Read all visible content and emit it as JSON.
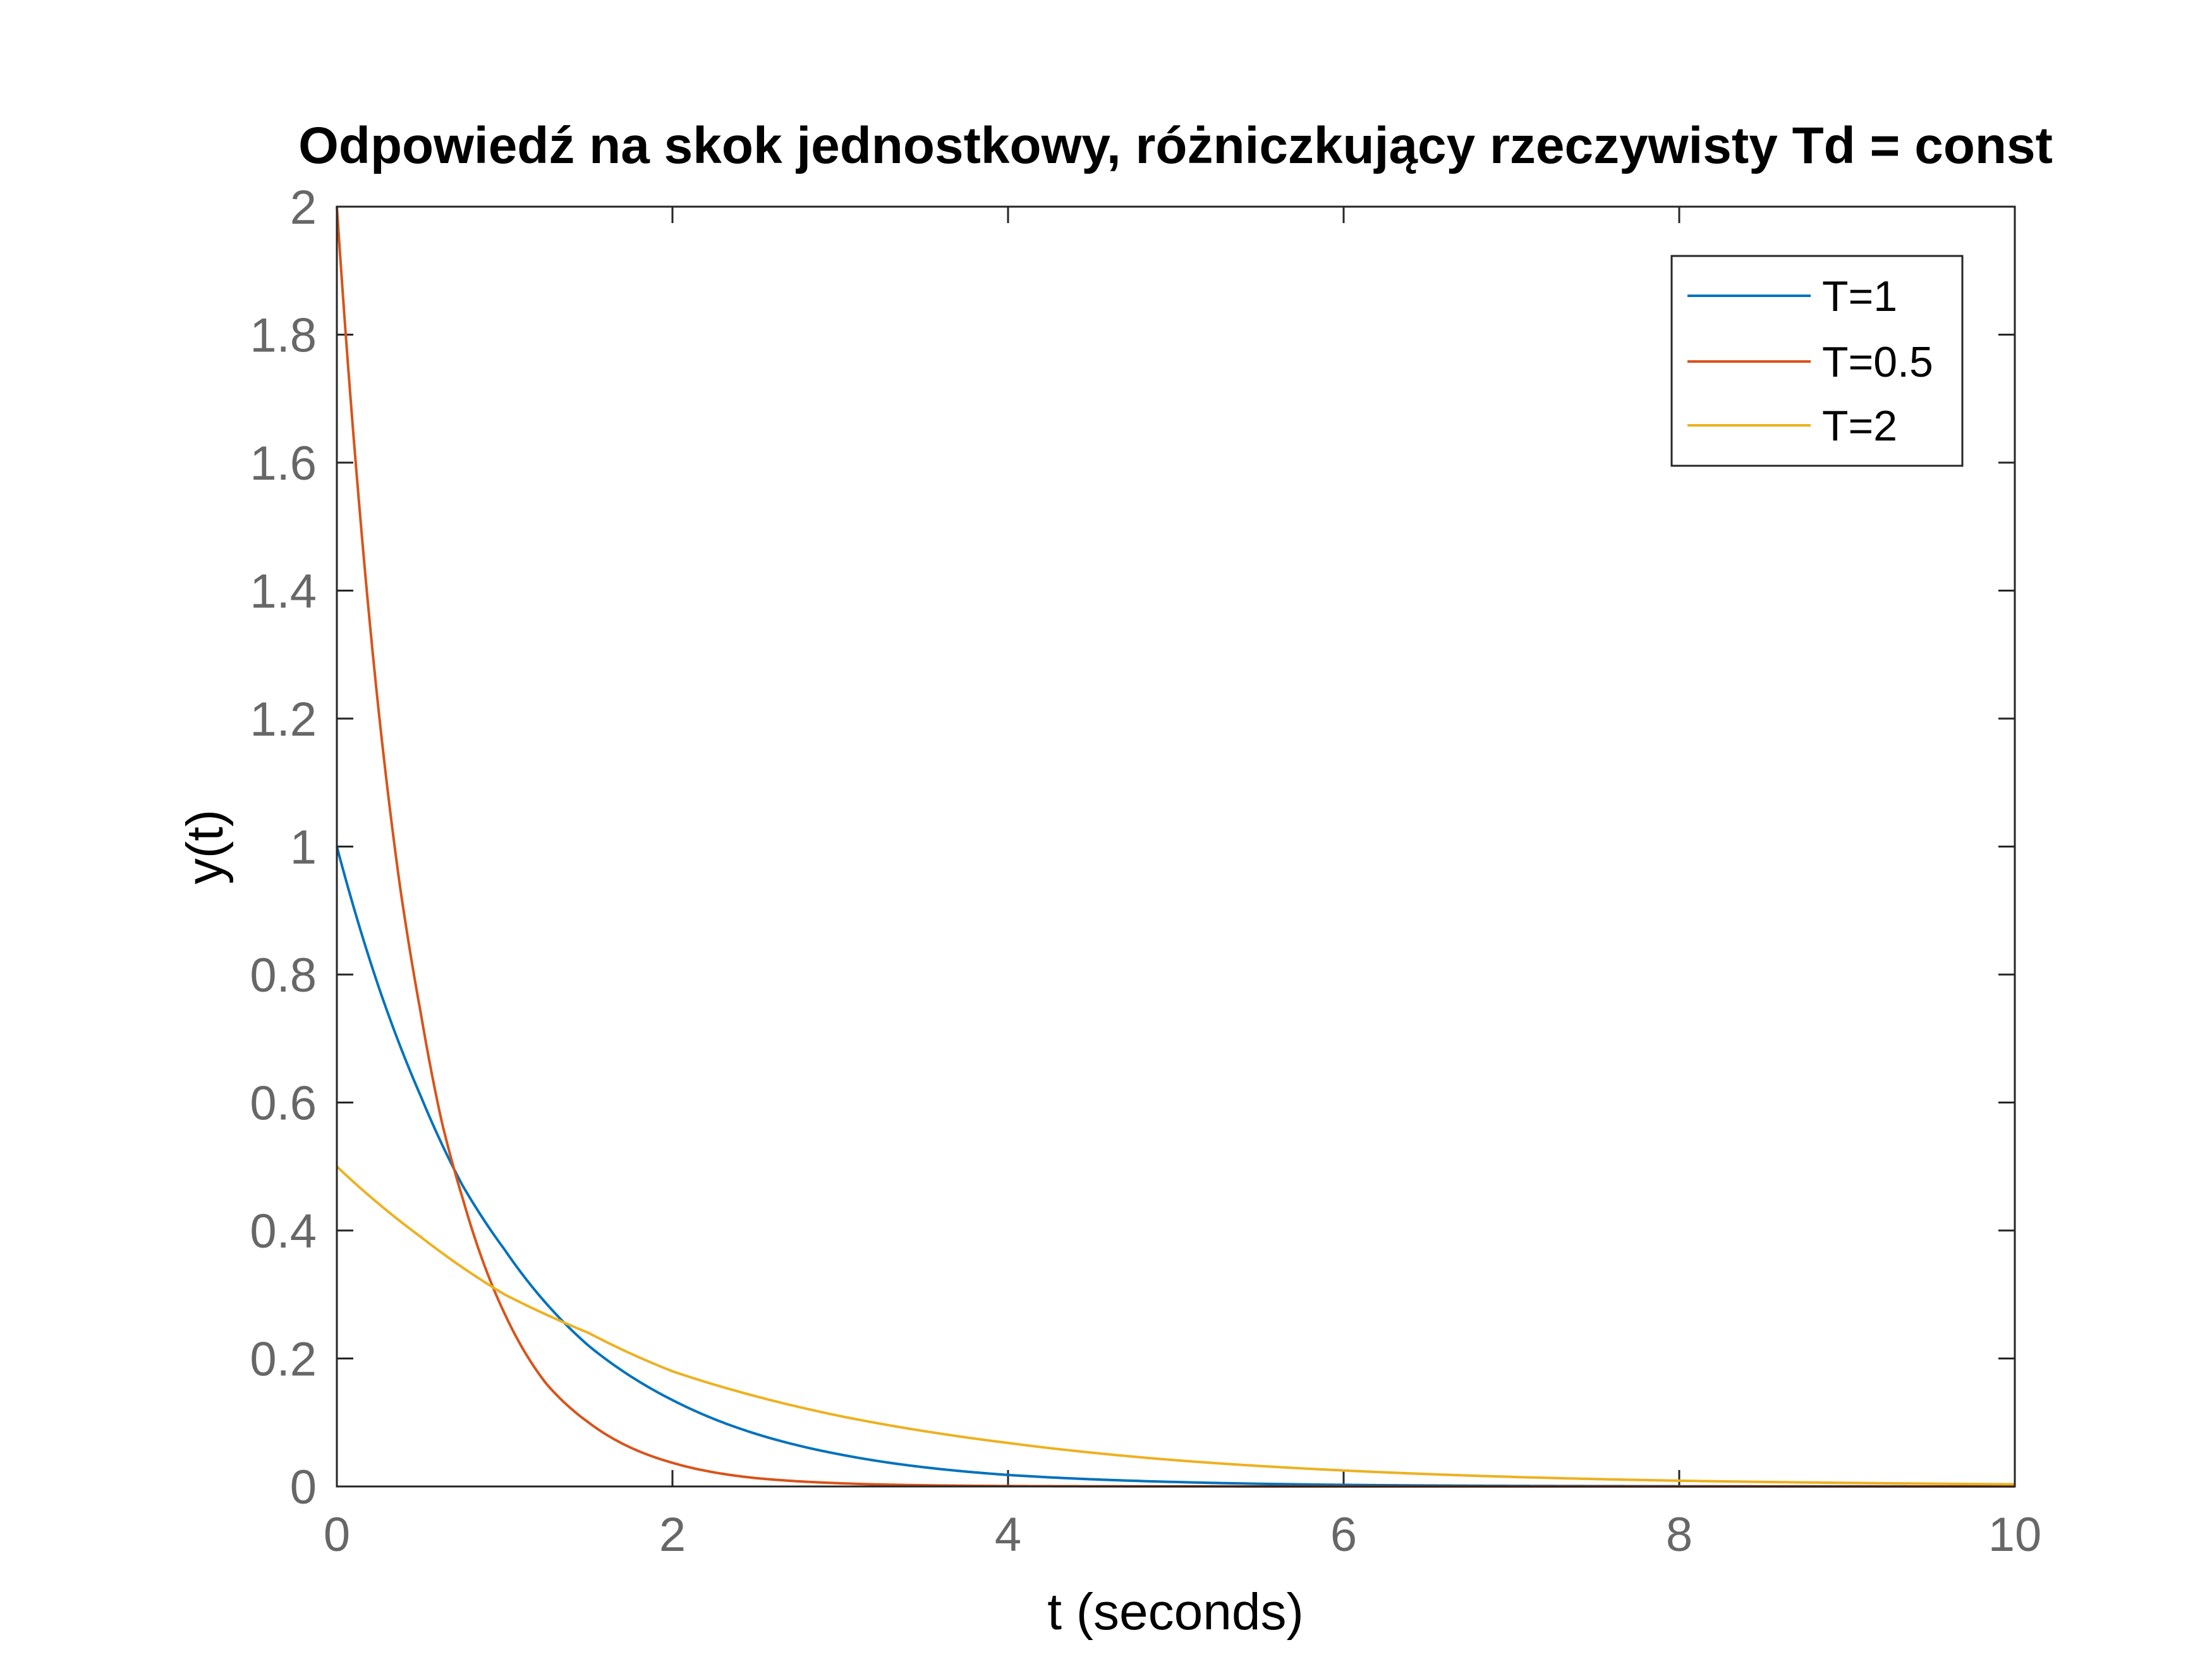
{
  "chart_data": {
    "type": "line",
    "title": "Odpowiedź na skok jednostkowy, różniczkujący rzeczywisty Td = const",
    "xlabel": "t (seconds)",
    "ylabel": "y(t)",
    "xlim": [
      0,
      10
    ],
    "ylim": [
      0,
      2
    ],
    "xticks": [
      "0",
      "2",
      "4",
      "6",
      "8",
      "10"
    ],
    "yticks": [
      "0",
      "0.2",
      "0.4",
      "0.6",
      "0.8",
      "1",
      "1.2",
      "1.4",
      "1.6",
      "1.8",
      "2"
    ],
    "grid": false,
    "legend_position": "top-right",
    "series": [
      {
        "name": "T=1",
        "color": "#0072BD",
        "x": [
          0,
          0.25,
          0.5,
          0.75,
          1,
          1.5,
          2,
          2.5,
          3,
          4,
          5,
          6,
          7,
          8,
          9,
          10
        ],
        "y": [
          1,
          0.78,
          0.61,
          0.47,
          0.37,
          0.22,
          0.135,
          0.082,
          0.05,
          0.018,
          0.007,
          0.0025,
          0.0009,
          0.0003,
          0.0001,
          0
        ]
      },
      {
        "name": "T=0.5",
        "color": "#D95319",
        "x": [
          0,
          0.125,
          0.25,
          0.375,
          0.5,
          0.625,
          0.75,
          1,
          1.25,
          1.5,
          2,
          2.5,
          3,
          4,
          5,
          6,
          8,
          10
        ],
        "y": [
          2,
          1.56,
          1.21,
          0.94,
          0.74,
          0.57,
          0.45,
          0.27,
          0.16,
          0.1,
          0.037,
          0.013,
          0.005,
          0.0007,
          0.0001,
          0,
          0,
          0
        ]
      },
      {
        "name": "T=2",
        "color": "#EDB120",
        "x": [
          0,
          0.5,
          1,
          1.5,
          2,
          3,
          4,
          5,
          6,
          7,
          8,
          9,
          10
        ],
        "y": [
          0.5,
          0.39,
          0.3,
          0.24,
          0.18,
          0.11,
          0.068,
          0.041,
          0.025,
          0.015,
          0.009,
          0.0056,
          0.0034
        ]
      }
    ]
  }
}
